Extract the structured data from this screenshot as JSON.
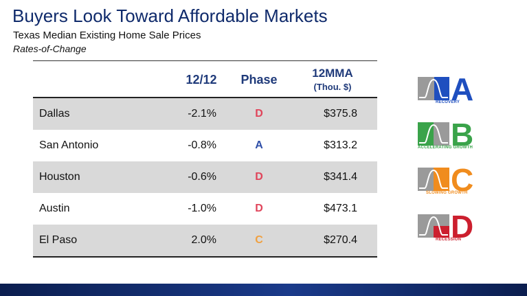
{
  "header": {
    "title": "Buyers Look Toward Affordable Markets",
    "subtitle": "Texas Median Existing Home Sale Prices",
    "subtitle2": "Rates-of-Change"
  },
  "table": {
    "col_1212": "12/12",
    "col_phase": "Phase",
    "col_mma": "12MMA",
    "col_mma_sub": "(Thou. $)",
    "rows": [
      {
        "city": "Dallas",
        "change": "-2.1%",
        "phase": "D",
        "price": "$375.8"
      },
      {
        "city": "San Antonio",
        "change": "-0.8%",
        "phase": "A",
        "price": "$313.2"
      },
      {
        "city": "Houston",
        "change": "-0.6%",
        "phase": "D",
        "price": "$341.4"
      },
      {
        "city": "Austin",
        "change": "-1.0%",
        "phase": "D",
        "price": "$473.1"
      },
      {
        "city": "El Paso",
        "change": "2.0%",
        "phase": "C",
        "price": "$270.4"
      }
    ]
  },
  "legend": {
    "a": {
      "letter": "A",
      "caption": "RECOVERY",
      "color": "#1f4fbf"
    },
    "b": {
      "letter": "B",
      "caption": "ACCELERATING GROWTH",
      "color": "#3aa34a"
    },
    "c": {
      "letter": "C",
      "caption": "SLOWING GROWTH",
      "color": "#f08c1e"
    },
    "d": {
      "letter": "D",
      "caption": "RECESSION",
      "color": "#cc1f2e"
    }
  },
  "phase_colors": {
    "A": "#2f4fa8",
    "C": "#f0a040",
    "D": "#e0445a"
  }
}
